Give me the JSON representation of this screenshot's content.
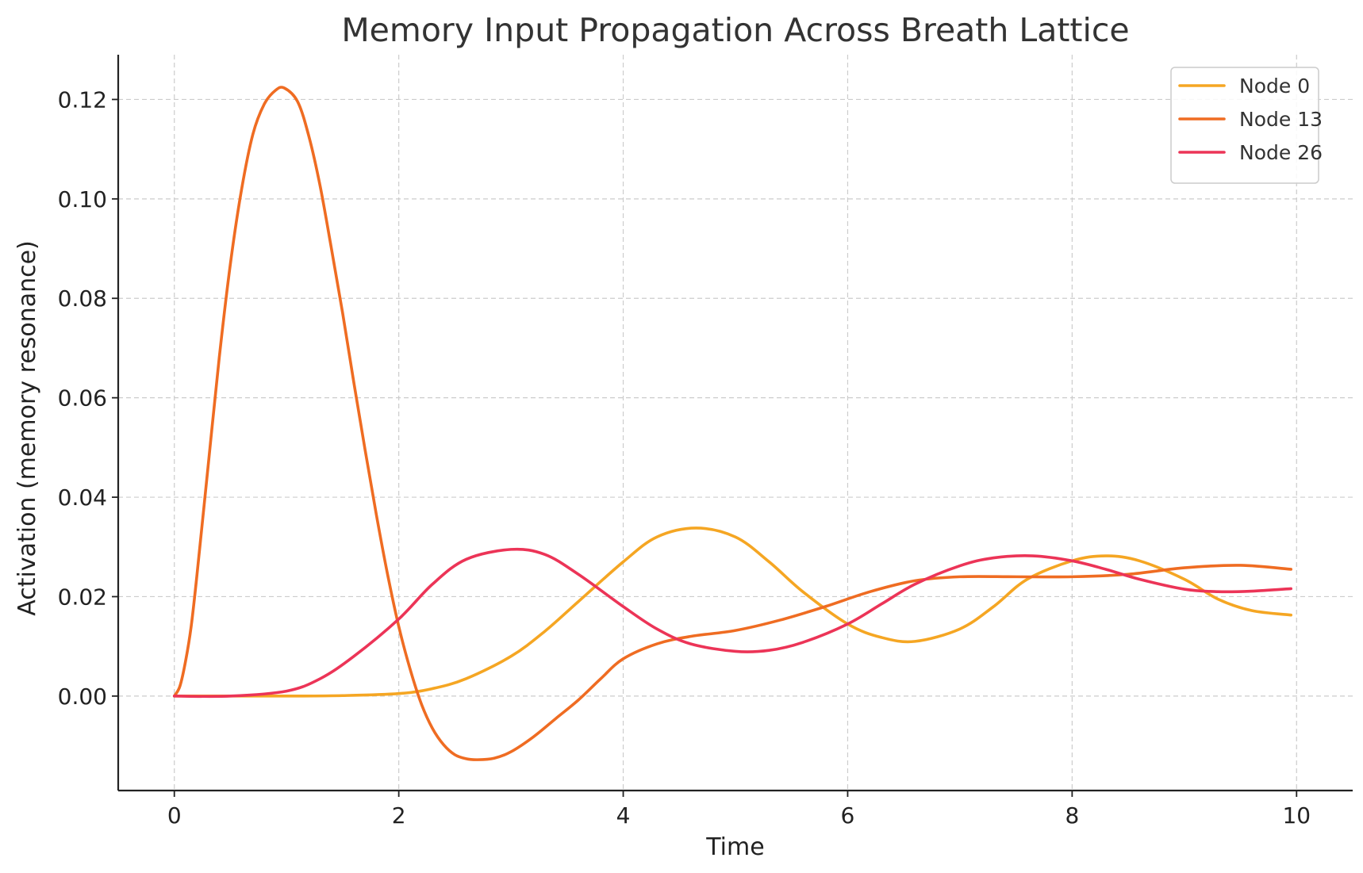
{
  "chart_data": {
    "type": "line",
    "title": "Memory Input Propagation Across Breath Lattice",
    "xlabel": "Time",
    "ylabel": "Activation (memory resonance)",
    "xlim": [
      -0.5,
      10.5
    ],
    "ylim": [
      -0.019,
      0.129
    ],
    "xticks": [
      0,
      2,
      4,
      6,
      8,
      10
    ],
    "yticks": [
      0.0,
      0.02,
      0.04,
      0.06,
      0.08,
      0.1,
      0.12
    ],
    "ytick_labels": [
      "0.00",
      "0.02",
      "0.04",
      "0.06",
      "0.08",
      "0.10",
      "0.12"
    ],
    "xtick_labels": [
      "0",
      "2",
      "4",
      "6",
      "8",
      "10"
    ],
    "grid": true,
    "legend_position": "top-right",
    "series": [
      {
        "name": "Node 0",
        "color": "#F5A623",
        "x": [
          0,
          0.5,
          1.0,
          1.5,
          2.0,
          2.3,
          2.6,
          3.0,
          3.3,
          3.6,
          4.0,
          4.3,
          4.65,
          5.0,
          5.3,
          5.6,
          6.0,
          6.3,
          6.6,
          7.0,
          7.3,
          7.6,
          8.0,
          8.3,
          8.6,
          9.0,
          9.3,
          9.6,
          9.95
        ],
        "y": [
          0.0,
          0.0,
          0.0,
          0.0001,
          0.0005,
          0.0015,
          0.0035,
          0.008,
          0.013,
          0.019,
          0.027,
          0.032,
          0.0338,
          0.032,
          0.027,
          0.021,
          0.0145,
          0.0118,
          0.011,
          0.0135,
          0.018,
          0.0235,
          0.0272,
          0.0282,
          0.0272,
          0.0235,
          0.0195,
          0.0172,
          0.0163
        ]
      },
      {
        "name": "Node 13",
        "color": "#EF6C22",
        "x": [
          0,
          0.05,
          0.1,
          0.15,
          0.2,
          0.3,
          0.4,
          0.5,
          0.6,
          0.7,
          0.8,
          0.9,
          0.98,
          1.1,
          1.2,
          1.3,
          1.4,
          1.5,
          1.6,
          1.7,
          1.8,
          1.9,
          2.0,
          2.1,
          2.2,
          2.3,
          2.4,
          2.5,
          2.6,
          2.7,
          2.85,
          3.0,
          3.2,
          3.4,
          3.6,
          3.8,
          4.0,
          4.3,
          4.6,
          5.0,
          5.4,
          5.8,
          6.2,
          6.6,
          7.0,
          7.5,
          8.0,
          8.5,
          9.0,
          9.5,
          9.95
        ],
        "y": [
          0.0,
          0.002,
          0.007,
          0.014,
          0.024,
          0.046,
          0.068,
          0.087,
          0.102,
          0.113,
          0.119,
          0.1218,
          0.1223,
          0.1195,
          0.1125,
          0.1025,
          0.09,
          0.077,
          0.063,
          0.0495,
          0.0365,
          0.0245,
          0.014,
          0.0055,
          -0.0015,
          -0.0065,
          -0.0098,
          -0.0118,
          -0.0126,
          -0.0128,
          -0.0125,
          -0.0112,
          -0.0082,
          -0.0045,
          -0.0008,
          0.0035,
          0.0075,
          0.0105,
          0.012,
          0.0132,
          0.0153,
          0.018,
          0.021,
          0.0232,
          0.024,
          0.024,
          0.024,
          0.0245,
          0.0258,
          0.0263,
          0.0255
        ]
      },
      {
        "name": "Node 26",
        "color": "#EC3457",
        "x": [
          0,
          0.5,
          1.0,
          1.3,
          1.6,
          2.0,
          2.3,
          2.6,
          3.0,
          3.3,
          3.6,
          4.0,
          4.3,
          4.6,
          5.0,
          5.3,
          5.6,
          6.0,
          6.3,
          6.6,
          7.0,
          7.3,
          7.65,
          8.0,
          8.3,
          8.6,
          9.0,
          9.3,
          9.6,
          9.95
        ],
        "y": [
          0.0,
          0.0,
          0.001,
          0.0035,
          0.008,
          0.0155,
          0.0225,
          0.0275,
          0.0295,
          0.0285,
          0.0245,
          0.018,
          0.0135,
          0.0105,
          0.009,
          0.0092,
          0.0108,
          0.0145,
          0.0185,
          0.0225,
          0.0262,
          0.0278,
          0.0282,
          0.0272,
          0.0255,
          0.0235,
          0.0215,
          0.021,
          0.0211,
          0.0216
        ]
      }
    ]
  }
}
